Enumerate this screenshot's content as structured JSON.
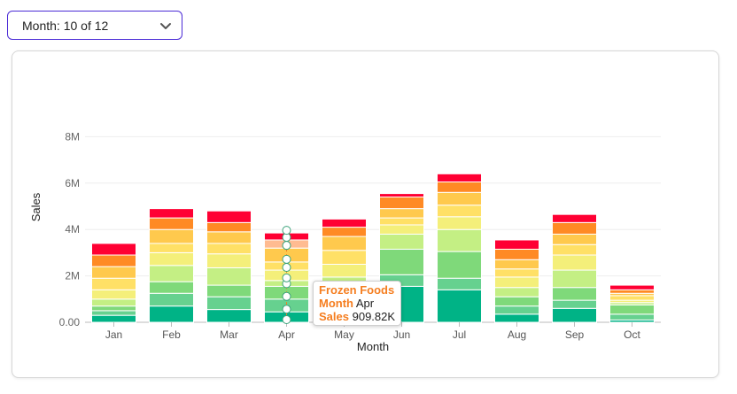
{
  "selector": {
    "label": "Month: 10 of 12"
  },
  "colors": {
    "accent": "#4b2bd6",
    "categories": [
      "#00b386",
      "#66d18f",
      "#7fd97a",
      "#c4ef84",
      "#f4ef7a",
      "#ffe066",
      "#ffc94d",
      "#ff8a24",
      "#ff0033",
      "#2ec48a",
      "#7fd98a"
    ],
    "highlight": "#ffbb91"
  },
  "chart_data": {
    "type": "bar",
    "stacked": true,
    "xlabel": "Month",
    "ylabel": "Sales",
    "ylim": [
      0,
      10000000
    ],
    "yticks": [
      "0.00",
      "2M",
      "4M",
      "6M",
      "8M"
    ],
    "categories": [
      "Jan",
      "Feb",
      "Mar",
      "Apr",
      "May",
      "Jun",
      "Jul",
      "Aug",
      "Sep",
      "Oct"
    ],
    "stacks": [
      [
        0.3,
        0.7,
        0.55,
        0.45,
        0.5,
        1.55,
        1.4,
        0.35,
        0.6,
        0.1
      ],
      [
        0.2,
        0.55,
        0.55,
        0.55,
        0.5,
        0.5,
        0.5,
        0.35,
        0.35,
        0.25
      ],
      [
        0.2,
        0.5,
        0.5,
        0.55,
        0.5,
        1.1,
        1.15,
        0.4,
        0.55,
        0.4
      ],
      [
        0.3,
        0.7,
        0.75,
        0.25,
        0.45,
        0.65,
        0.95,
        0.4,
        0.75,
        0.1
      ],
      [
        0.4,
        0.55,
        0.6,
        0.45,
        0.55,
        0.4,
        0.55,
        0.45,
        0.65,
        0.1
      ],
      [
        0.5,
        0.4,
        0.45,
        0.35,
        0.6,
        0.3,
        0.5,
        0.35,
        0.45,
        0.2
      ],
      [
        0.5,
        0.6,
        0.5,
        0.6,
        0.6,
        0.4,
        0.55,
        0.4,
        0.45,
        0.1
      ],
      [
        0.5,
        0.5,
        0.4,
        0.35,
        0.4,
        0.5,
        0.45,
        0.45,
        0.5,
        0.15
      ],
      [
        0.5,
        0.4,
        0.5,
        0.3,
        0.35,
        0.15,
        0.35,
        0.4,
        0.35,
        0.2
      ]
    ],
    "tooltip": {
      "label_category": "Frozen Foods",
      "month_label": "Month",
      "month_value": "Apr",
      "sales_label": "Sales",
      "sales_value": "909.82K"
    }
  }
}
